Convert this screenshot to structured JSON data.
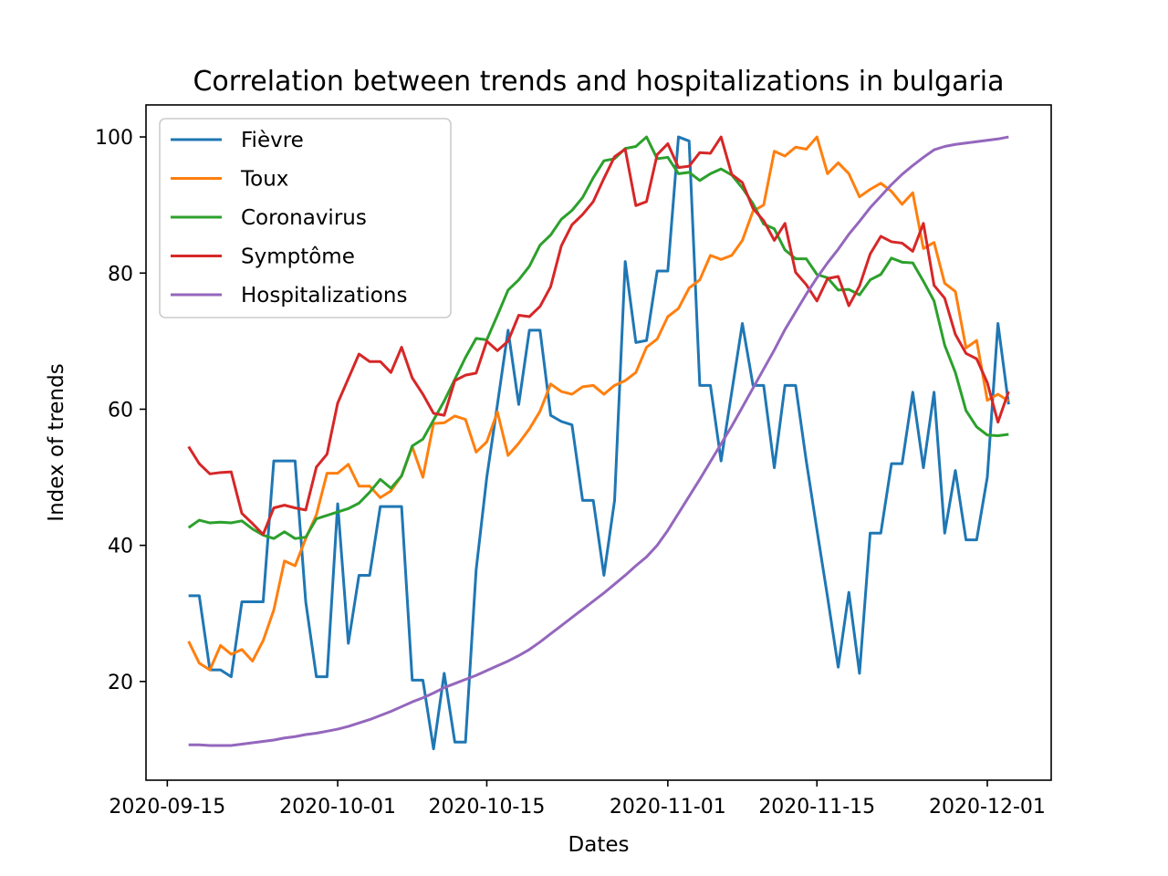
{
  "chart_data": {
    "type": "line",
    "title": "Correlation between trends and hospitalizations in bulgaria",
    "xlabel": "Dates",
    "ylabel": "Index of trends",
    "x_ticks": [
      "2020-09-15",
      "2020-10-01",
      "2020-10-15",
      "2020-11-01",
      "2020-11-15",
      "2020-12-01"
    ],
    "y_ticks": [
      20,
      40,
      60,
      80,
      100
    ],
    "xlim": [
      "2020-09-13",
      "2020-12-07"
    ],
    "ylim": [
      5.5,
      104.7
    ],
    "grid": false,
    "legend_position": "upper-left",
    "x_start": "2020-09-17",
    "x_end": "2020-12-03",
    "series": [
      {
        "name": "Fièvre",
        "color": "#1f77b4",
        "values": [
          32.6,
          32.6,
          21.7,
          21.7,
          20.7,
          31.7,
          31.7,
          31.7,
          52.4,
          52.4,
          52.4,
          31.7,
          20.7,
          20.7,
          46.1,
          25.6,
          35.6,
          35.6,
          45.7,
          45.7,
          45.7,
          20.2,
          20.2,
          10.1,
          21.2,
          11.1,
          11.1,
          36.4,
          50.0,
          60.7,
          71.6,
          60.7,
          71.6,
          71.6,
          59.1,
          58.2,
          57.7,
          46.6,
          46.6,
          35.6,
          46.6,
          81.7,
          69.8,
          70.1,
          80.3,
          80.3,
          100.0,
          99.4,
          63.5,
          63.5,
          52.4,
          62.5,
          72.6,
          63.5,
          63.5,
          51.4,
          63.5,
          63.5,
          52.4,
          42.3,
          32.4,
          22.1,
          33.1,
          21.2,
          41.8,
          41.8,
          52.0,
          52.0,
          62.5,
          51.4,
          62.5,
          41.8,
          51.0,
          40.8,
          40.8,
          50.0,
          72.6,
          60.7
        ]
      },
      {
        "name": "Toux",
        "color": "#ff7f0e",
        "values": [
          25.9,
          22.7,
          21.7,
          25.3,
          24.0,
          24.7,
          23.0,
          26.0,
          30.5,
          37.7,
          37.0,
          41.0,
          44.5,
          50.6,
          50.6,
          51.9,
          48.7,
          48.7,
          47.0,
          48.0,
          50.2,
          54.5,
          50.0,
          57.9,
          58.0,
          59.0,
          58.5,
          53.7,
          55.2,
          59.6,
          53.2,
          55.0,
          57.1,
          59.7,
          63.7,
          62.6,
          62.2,
          63.3,
          63.5,
          62.2,
          63.5,
          64.2,
          65.4,
          69.1,
          70.3,
          73.6,
          74.8,
          77.8,
          79.0,
          82.6,
          82.0,
          82.6,
          84.8,
          89.1,
          90.0,
          97.9,
          97.2,
          98.5,
          98.2,
          100.0,
          94.6,
          96.2,
          94.6,
          91.2,
          92.3,
          93.2,
          92.0,
          90.1,
          91.8,
          83.6,
          84.5,
          78.5,
          77.3,
          69.0,
          70.1,
          61.3,
          62.2,
          61.2
        ]
      },
      {
        "name": "Coronavirus",
        "color": "#2ca02c",
        "values": [
          42.6,
          43.7,
          43.3,
          43.4,
          43.3,
          43.6,
          42.4,
          41.5,
          41.0,
          42.0,
          41.0,
          41.2,
          43.9,
          44.4,
          44.9,
          45.4,
          46.2,
          47.8,
          49.7,
          48.4,
          50.2,
          54.6,
          55.6,
          58.4,
          61.2,
          64.4,
          67.6,
          70.4,
          70.2,
          73.8,
          77.5,
          79.0,
          81.0,
          84.1,
          85.6,
          87.9,
          89.2,
          91.1,
          94.0,
          96.5,
          96.8,
          98.3,
          98.6,
          100.0,
          96.8,
          97.0,
          94.6,
          94.8,
          93.6,
          94.6,
          95.3,
          94.4,
          92.5,
          90.2,
          87.2,
          86.5,
          83.4,
          82.1,
          82.1,
          79.8,
          79.3,
          77.5,
          77.6,
          76.8,
          79.0,
          79.8,
          82.2,
          81.6,
          81.5,
          78.8,
          75.9,
          69.4,
          65.4,
          59.8,
          57.4,
          56.2,
          56.1,
          56.3
        ]
      },
      {
        "name": "Symptôme",
        "color": "#d62728",
        "values": [
          54.5,
          52.0,
          50.5,
          50.7,
          50.8,
          44.7,
          43.2,
          41.6,
          45.5,
          45.9,
          45.5,
          45.2,
          51.5,
          53.4,
          60.9,
          64.5,
          68.1,
          67.0,
          67.0,
          65.4,
          69.1,
          64.6,
          62.2,
          59.4,
          59.1,
          64.2,
          65.0,
          65.3,
          70.0,
          68.6,
          70.0,
          73.8,
          73.6,
          75.1,
          78.0,
          84.0,
          87.1,
          88.6,
          90.5,
          93.9,
          97.1,
          98.2,
          89.9,
          90.5,
          97.4,
          99.0,
          95.5,
          95.7,
          97.7,
          97.6,
          100.0,
          94.5,
          93.3,
          89.5,
          87.7,
          84.8,
          87.3,
          80.1,
          78.3,
          75.9,
          79.2,
          79.5,
          75.2,
          78.1,
          82.8,
          85.4,
          84.6,
          84.4,
          83.2,
          87.3,
          78.2,
          76.3,
          71.0,
          68.2,
          67.4,
          63.9,
          58.1,
          62.6
        ]
      },
      {
        "name": "Hospitalizations",
        "color": "#9467bd",
        "values": [
          10.7,
          10.7,
          10.6,
          10.6,
          10.6,
          10.8,
          11.0,
          11.2,
          11.4,
          11.7,
          11.9,
          12.2,
          12.4,
          12.7,
          13.0,
          13.4,
          13.9,
          14.4,
          15.0,
          15.6,
          16.3,
          17.0,
          17.6,
          18.3,
          19.1,
          19.7,
          20.3,
          20.9,
          21.6,
          22.3,
          23.0,
          23.8,
          24.7,
          25.8,
          27.0,
          28.2,
          29.4,
          30.6,
          31.8,
          33.0,
          34.3,
          35.6,
          37.0,
          38.3,
          40.0,
          42.2,
          44.7,
          47.2,
          49.7,
          52.3,
          54.9,
          57.5,
          60.3,
          63.1,
          65.9,
          68.7,
          71.7,
          74.3,
          76.9,
          79.3,
          81.5,
          83.5,
          85.7,
          87.6,
          89.6,
          91.3,
          93.0,
          94.5,
          95.8,
          97.0,
          98.1,
          98.6,
          98.9,
          99.1,
          99.3,
          99.5,
          99.7,
          100.0
        ]
      }
    ]
  }
}
